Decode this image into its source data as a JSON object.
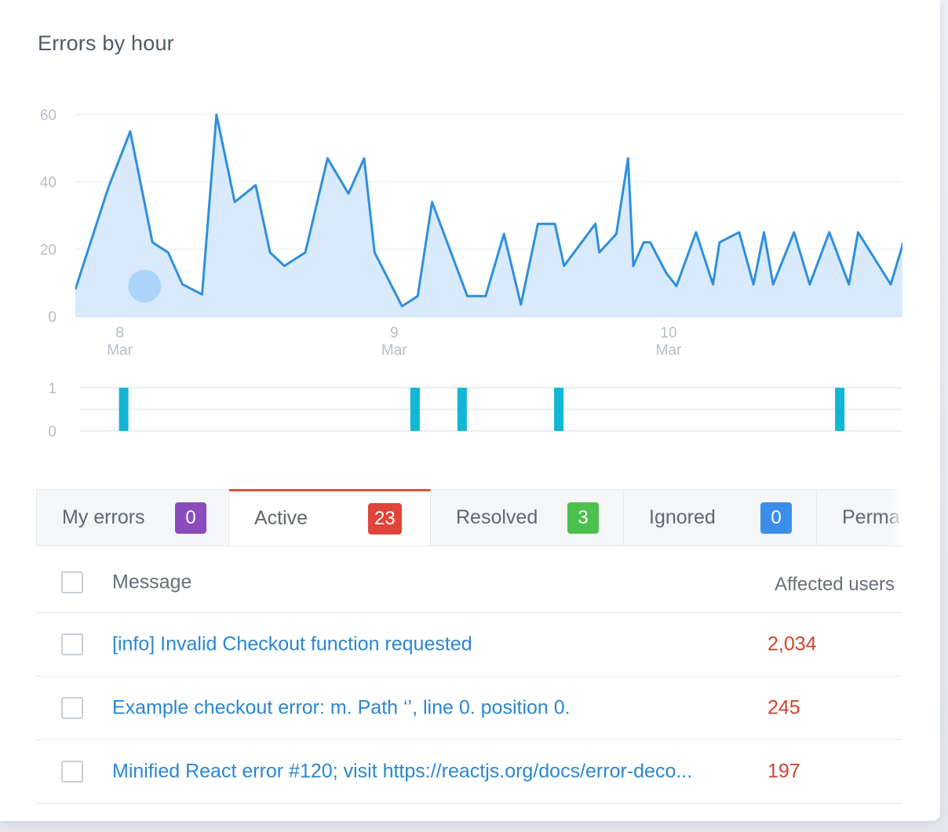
{
  "chart_title": "Errors by hour",
  "chart_data": [
    {
      "type": "area",
      "title": "Errors by hour",
      "y_ticks": [
        "0",
        "20",
        "40",
        "60"
      ],
      "ylim": [
        0,
        60
      ],
      "x_ticks": [
        {
          "day": "8",
          "month": "Mar"
        },
        {
          "day": "9",
          "month": "Mar"
        },
        {
          "day": "10",
          "month": "Mar"
        }
      ],
      "x_tick_hours": [
        2,
        23,
        44
      ],
      "xlim_hours": [
        -1.4,
        61.9
      ],
      "grid": true,
      "color": "#2f8fdb",
      "fill": "#d4e8fb",
      "series": [
        {
          "x_hours": [
            -1.4,
            1.1,
            2.8,
            4.5,
            5.7,
            6.8,
            8.3,
            9.4,
            10.8,
            12.4,
            13.5,
            14.6,
            16.2,
            17.9,
            19.5,
            20.7,
            21.5,
            23.6,
            24.8,
            25.9,
            28.6,
            30.0,
            31.4,
            32.7,
            34.0,
            35.3,
            36.0,
            38.4,
            38.7,
            40.0,
            40.9,
            41.3,
            42.1,
            42.6,
            43.8,
            44.6,
            46.1,
            47.4,
            47.9,
            49.4,
            50.5,
            51.3,
            52.0,
            53.6,
            54.8,
            56.3,
            57.8,
            58.5,
            61.0,
            62.2,
            63.6,
            64.8
          ],
          "values": [
            8,
            38,
            55,
            22,
            19,
            9.5,
            6.5,
            60,
            34,
            39,
            19,
            15,
            19,
            47,
            36.5,
            47,
            19,
            3,
            6,
            34,
            6,
            6,
            24.5,
            3.5,
            27.5,
            27.5,
            15,
            27.5,
            19,
            24.5,
            47,
            15,
            22,
            22,
            13,
            9,
            25,
            9.5,
            22,
            25,
            9.5,
            25,
            9.5,
            25,
            9.5,
            25,
            9.5,
            25,
            9.5,
            25,
            9.5,
            22
          ]
        }
      ]
    },
    {
      "type": "bar",
      "y_ticks": [
        "0",
        "1"
      ],
      "ylim": [
        0,
        1
      ],
      "color": "#12b7d5",
      "events_hours": [
        2.3,
        24.6,
        28.2,
        35.6,
        57.1
      ],
      "values": [
        1,
        1,
        1,
        1,
        1
      ]
    }
  ],
  "tabs": [
    {
      "label": "My errors",
      "count": "0",
      "color": "#8a4bbd"
    },
    {
      "label": "Active",
      "count": "23",
      "color": "#e0453a",
      "active": true
    },
    {
      "label": "Resolved",
      "count": "3",
      "color": "#4cc04c"
    },
    {
      "label": "Ignored",
      "count": "0",
      "color": "#3b8ee8"
    },
    {
      "label": "Perma",
      "count": "",
      "color": ""
    }
  ],
  "table": {
    "header_message": "Message",
    "header_users": "Affected users",
    "rows": [
      {
        "message": "[info] Invalid Checkout function requested",
        "users": "2,034"
      },
      {
        "message": "Example checkout error: m. Path ‘’, line 0. position 0.",
        "users": "245"
      },
      {
        "message": "Minified React error #120; visit https://reactjs.org/docs/error-deco...",
        "users": "197"
      }
    ]
  }
}
